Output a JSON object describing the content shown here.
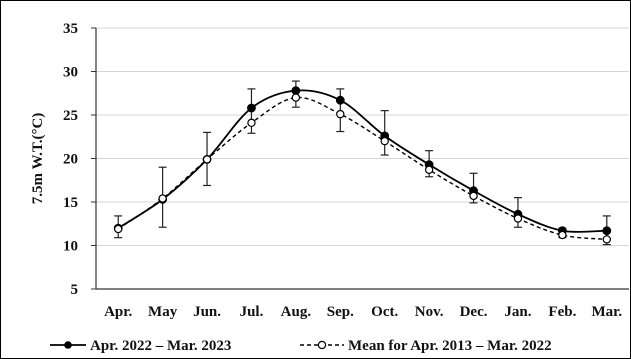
{
  "chart_data": {
    "type": "line",
    "title": "",
    "xlabel": "",
    "ylabel": "7.5m W.T.(°C)",
    "ylim": [
      5,
      35
    ],
    "yticks": [
      5,
      10,
      15,
      20,
      25,
      30,
      35
    ],
    "grid": true,
    "legend_placement": "bottom",
    "categories": [
      "Apr.",
      "May",
      "Jun.",
      "Jul.",
      "Aug.",
      "Sep.",
      "Oct.",
      "Nov.",
      "Dec.",
      "Jan.",
      "Feb.",
      "Mar."
    ],
    "series": [
      {
        "name": "Apr. 2022 – Mar. 2023",
        "style": "solid",
        "marker": "filled-circle",
        "color": "#000000",
        "values": [
          12.0,
          15.3,
          19.9,
          25.8,
          27.8,
          26.7,
          22.6,
          19.3,
          16.3,
          13.6,
          11.7,
          11.7
        ]
      },
      {
        "name": "Mean for Apr. 2013 – Mar. 2022",
        "style": "dashed",
        "marker": "open-circle",
        "color": "#000000",
        "values": [
          11.9,
          15.4,
          19.9,
          24.1,
          27.0,
          25.1,
          22.0,
          18.7,
          15.7,
          13.1,
          11.2,
          10.7
        ],
        "error_low": [
          10.9,
          12.1,
          16.9,
          22.9,
          25.9,
          23.1,
          20.4,
          17.9,
          14.9,
          12.1,
          10.9,
          10.1
        ],
        "error_high": [
          13.4,
          19.0,
          23.0,
          28.0,
          28.9,
          28.0,
          25.5,
          20.9,
          18.3,
          15.5,
          12.0,
          13.4
        ]
      }
    ]
  }
}
